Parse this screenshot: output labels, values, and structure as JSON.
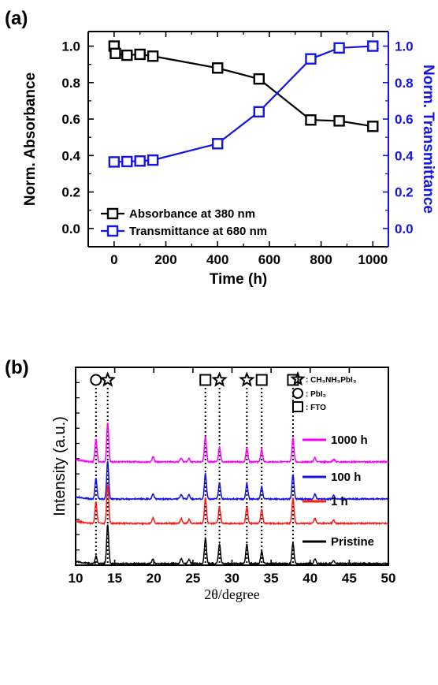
{
  "chart_data": [
    {
      "panel": "(a)",
      "type": "line",
      "xlabel": "Time (h)",
      "ylabel": "Norm. Absorbance",
      "ylabel_right": "Norm. Transmittance",
      "xlim": [
        -100,
        1060
      ],
      "ylim": [
        -0.1,
        1.08
      ],
      "xticks": [
        "0",
        "200",
        "400",
        "600",
        "800",
        "1000"
      ],
      "yticks": [
        "0.0",
        "0.2",
        "0.4",
        "0.6",
        "0.8",
        "1.0"
      ],
      "series": [
        {
          "name": "Absorbance at 380 nm",
          "color": "#000000",
          "marker": "open-square",
          "axis": "left",
          "x": [
            0,
            5,
            50,
            100,
            150,
            400,
            560,
            760,
            870,
            1000
          ],
          "y": [
            1.0,
            0.96,
            0.95,
            0.955,
            0.945,
            0.88,
            0.82,
            0.595,
            0.59,
            0.56
          ]
        },
        {
          "name": "Transmittance at 680 nm",
          "color": "#1414e6",
          "marker": "open-square",
          "axis": "right",
          "x": [
            0,
            50,
            100,
            150,
            400,
            560,
            760,
            870,
            1000
          ],
          "y": [
            0.365,
            0.367,
            0.37,
            0.375,
            0.465,
            0.64,
            0.93,
            0.99,
            1.0
          ]
        }
      ],
      "legend_position": "lower-left"
    },
    {
      "panel": "(b)",
      "type": "line",
      "xlabel": "2θ/degree",
      "ylabel": "Intensity (a.u.)",
      "xlim": [
        10,
        50
      ],
      "xticks": [
        "10",
        "15",
        "20",
        "25",
        "30",
        "35",
        "40",
        "45",
        "50"
      ],
      "peaks_2theta": [
        12.6,
        14.1,
        19.9,
        23.5,
        24.5,
        26.6,
        28.4,
        31.9,
        33.8,
        37.8,
        40.6,
        43.0
      ],
      "reference_lines_2theta": [
        12.6,
        14.1,
        26.6,
        28.4,
        31.9,
        33.8,
        37.8
      ],
      "phase_markers": [
        {
          "symbol": "circle",
          "x": 12.6
        },
        {
          "symbol": "star",
          "x": 14.1
        },
        {
          "symbol": "square",
          "x": 26.6
        },
        {
          "symbol": "star",
          "x": 28.4
        },
        {
          "symbol": "star",
          "x": 31.9
        },
        {
          "symbol": "square",
          "x": 33.8
        },
        {
          "symbol": "square",
          "x": 37.8
        }
      ],
      "key": [
        {
          "symbol": "star",
          "label": ": CH₃NH₃PbI₃"
        },
        {
          "symbol": "circle",
          "label": ": PbI₂"
        },
        {
          "symbol": "square",
          "label": ": FTO"
        }
      ],
      "series": [
        {
          "name": "1000 h",
          "color": "#ff00ff",
          "heights": [
            0.55,
            0.95,
            0.12,
            0.1,
            0.08,
            0.62,
            0.35,
            0.33,
            0.3,
            0.58,
            0.1,
            0.07
          ]
        },
        {
          "name": "100 h",
          "color": "#1414e6",
          "heights": [
            0.5,
            0.92,
            0.12,
            0.12,
            0.1,
            0.63,
            0.4,
            0.38,
            0.3,
            0.6,
            0.12,
            0.08
          ]
        },
        {
          "name": "1 h",
          "color": "#ff1a1a",
          "heights": [
            0.52,
            0.95,
            0.13,
            0.12,
            0.1,
            0.62,
            0.4,
            0.4,
            0.35,
            0.62,
            0.12,
            0.08
          ]
        },
        {
          "name": "Pristine",
          "color": "#000000",
          "heights": [
            0.18,
            0.95,
            0.12,
            0.12,
            0.1,
            0.62,
            0.48,
            0.48,
            0.3,
            0.5,
            0.12,
            0.08
          ]
        }
      ],
      "legend_position": "right"
    }
  ]
}
